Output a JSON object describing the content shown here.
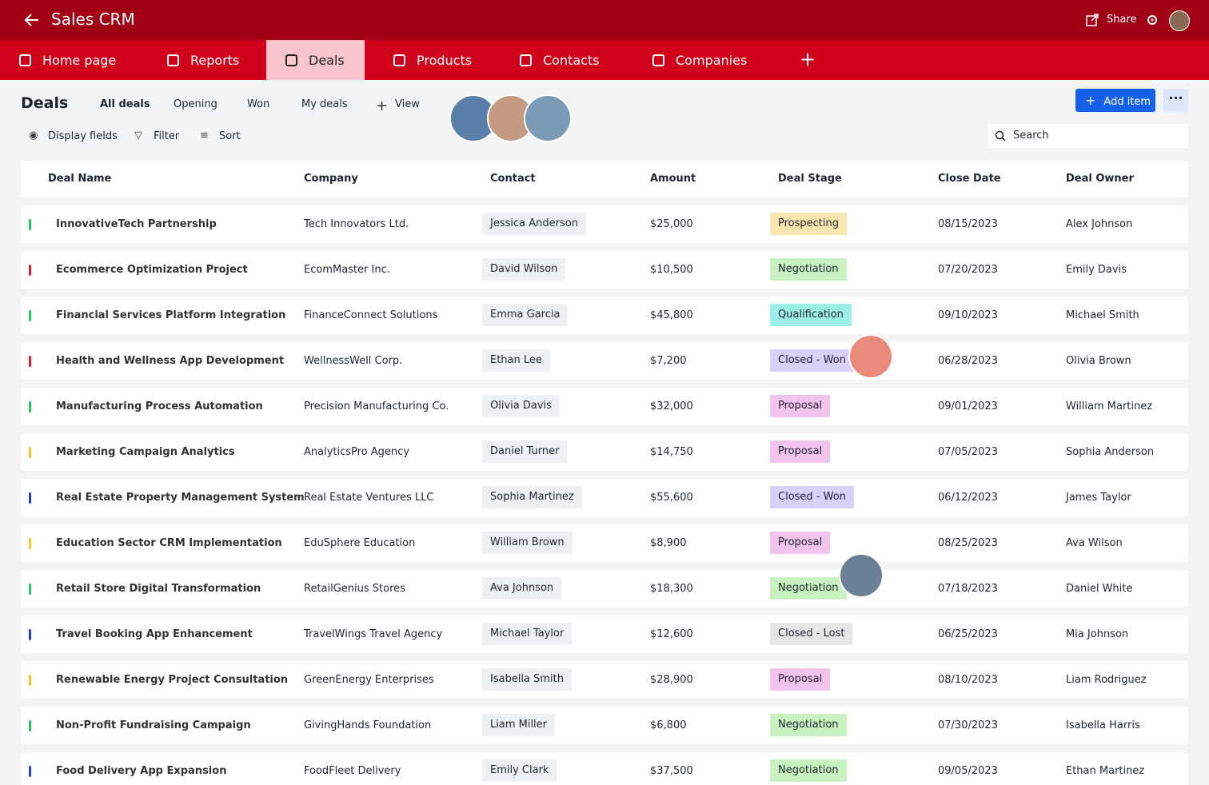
{
  "header": {
    "title": "Sales CRM",
    "share": "Share"
  },
  "nav": {
    "items": [
      "Home page",
      "Reports",
      "Deals",
      "Products",
      "Contacts",
      "Companies"
    ],
    "active": 2
  },
  "toolbar": {
    "title": "Deals",
    "views": [
      "All deals",
      "Opening",
      "Won",
      "My deals"
    ],
    "active_view": 0,
    "add_view": "View",
    "add_item": "Add item",
    "actions": [
      "Display fields",
      "Filter",
      "Sort"
    ],
    "search": "Search"
  },
  "table": {
    "columns": [
      "Deal Name",
      "Company",
      "Contact",
      "Amount",
      "Deal Stage",
      "Close Date",
      "Deal Owner"
    ],
    "rows": [
      [
        "InnovativeTech Partnership",
        "Tech Innovators Ltd.",
        "Jessica Anderson",
        "$25,000",
        "Prospecting",
        "08/15/2023",
        "Alex Johnson"
      ],
      [
        "Ecommerce Optimization Project",
        "EcomMaster Inc.",
        "David Wilson",
        "$10,500",
        "Negotiation",
        "07/20/2023",
        "Emily Davis"
      ],
      [
        "Financial Services Platform Integration",
        "FinanceConnect Solutions",
        "Emma Garcia",
        "$45,800",
        "Qualification",
        "09/10/2023",
        "Michael Smith"
      ],
      [
        "Health and Wellness App Development",
        "WellnessWell Corp.",
        "Ethan Lee",
        "$7,200",
        "Closed - Won",
        "06/28/2023",
        "Olivia Brown"
      ],
      [
        "Manufacturing Process Automation",
        "Precision Manufacturing Co.",
        "Olivia Davis",
        "$32,000",
        "Proposal",
        "09/01/2023",
        "William Martinez"
      ],
      [
        "Marketing Campaign Analytics",
        "AnalyticsPro Agency",
        "Daniel Turner",
        "$14,750",
        "Proposal",
        "07/05/2023",
        "Sophia Anderson"
      ],
      [
        "Real Estate Property Management System",
        "Real Estate Ventures LLC",
        "Sophia Martinez",
        "$55,600",
        "Closed - Won",
        "06/12/2023",
        "James Taylor"
      ],
      [
        "Education Sector CRM Implementation",
        "EduSphere Education",
        "William Brown",
        "$8,900",
        "Proposal",
        "08/25/2023",
        "Ava Wilson"
      ],
      [
        "Retail Store Digital Transformation",
        "RetailGenius Stores",
        "Ava Johnson",
        "$18,300",
        "Negotiation",
        "07/18/2023",
        "Daniel White"
      ],
      [
        "Travel Booking App Enhancement",
        "TravelWings Travel Agency",
        "Michael Taylor",
        "$12,600",
        "Closed - Lost",
        "06/25/2023",
        "Mia Johnson"
      ],
      [
        "Renewable Energy Project Consultation",
        "GreenEnergy Enterprises",
        "Isabella Smith",
        "$28,900",
        "Proposal",
        "08/10/2023",
        "Liam Rodriguez"
      ],
      [
        "Non-Profit Fundraising Campaign",
        "GivingHands Foundation",
        "Liam Miller",
        "$6,800",
        "Negotiation",
        "07/30/2023",
        "Isabella Harris"
      ],
      [
        "Food Delivery App Expansion",
        "FoodFleet Delivery",
        "Emily Clark",
        "$37,500",
        "Negotiation",
        "09/05/2023",
        "Ethan Martinez"
      ]
    ],
    "row_colors": [
      "#22c55e",
      "#e11d2a",
      "#22c55e",
      "#e11d2a",
      "#22c55e",
      "#fbbf24",
      "#1d3fd6",
      "#fbbf24",
      "#22c55e",
      "#1d3fd6",
      "#fbbf24",
      "#22c55e",
      "#1d3fd6"
    ],
    "stage_colors": [
      "#fbe6b0",
      "#c8f2c0",
      "#9cefe6",
      "#d9d1fb",
      "#f2c3ec",
      "#f2c3ec",
      "#d9d1fb",
      "#f2c3ec",
      "#c8f2c0",
      "#e6e6e6",
      "#f2c3ec",
      "#c8f2c0",
      "#c8f2c0"
    ]
  }
}
